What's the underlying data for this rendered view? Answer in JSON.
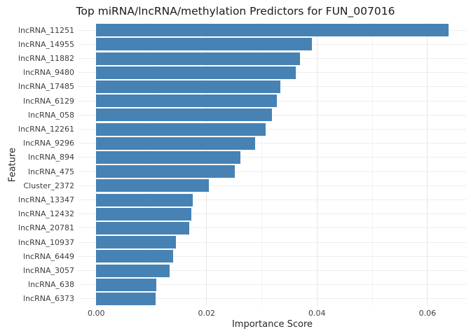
{
  "page_title": "Top miRNA/lncRNA/methylation Predictors for FUN_007016",
  "chart_data": {
    "type": "bar",
    "orientation": "horizontal",
    "title": "Top miRNA/lncRNA/methylation Predictors for FUN_007016",
    "xlabel": "Importance Score",
    "ylabel": "Feature",
    "categories": [
      "lncRNA_11251",
      "lncRNA_14955",
      "lncRNA_11882",
      "lncRNA_9480",
      "lncRNA_17485",
      "lncRNA_6129",
      "lncRNA_058",
      "lncRNA_12261",
      "lncRNA_9296",
      "lncRNA_894",
      "lncRNA_475",
      "Cluster_2372",
      "lncRNA_13347",
      "lncRNA_12432",
      "lncRNA_20781",
      "lncRNA_10937",
      "lncRNA_6449",
      "lncRNA_3057",
      "lncRNA_638",
      "lncRNA_6373"
    ],
    "values": [
      0.0638,
      0.0391,
      0.0369,
      0.0362,
      0.0333,
      0.0327,
      0.0319,
      0.0307,
      0.0288,
      0.0261,
      0.0251,
      0.0204,
      0.0175,
      0.0173,
      0.0168,
      0.0145,
      0.014,
      0.0133,
      0.0109,
      0.0108
    ],
    "xlim": [
      -0.0032,
      0.067
    ],
    "xticks": [
      0,
      0.02,
      0.04,
      0.06
    ],
    "xtick_labels": [
      "0.00",
      "0.02",
      "0.04",
      "0.06"
    ],
    "minor_xticks": [
      0.01,
      0.03,
      0.05
    ],
    "bar_color": "#4682B4",
    "background_color": "#ffffff",
    "grid": true,
    "legend_position": "none"
  }
}
